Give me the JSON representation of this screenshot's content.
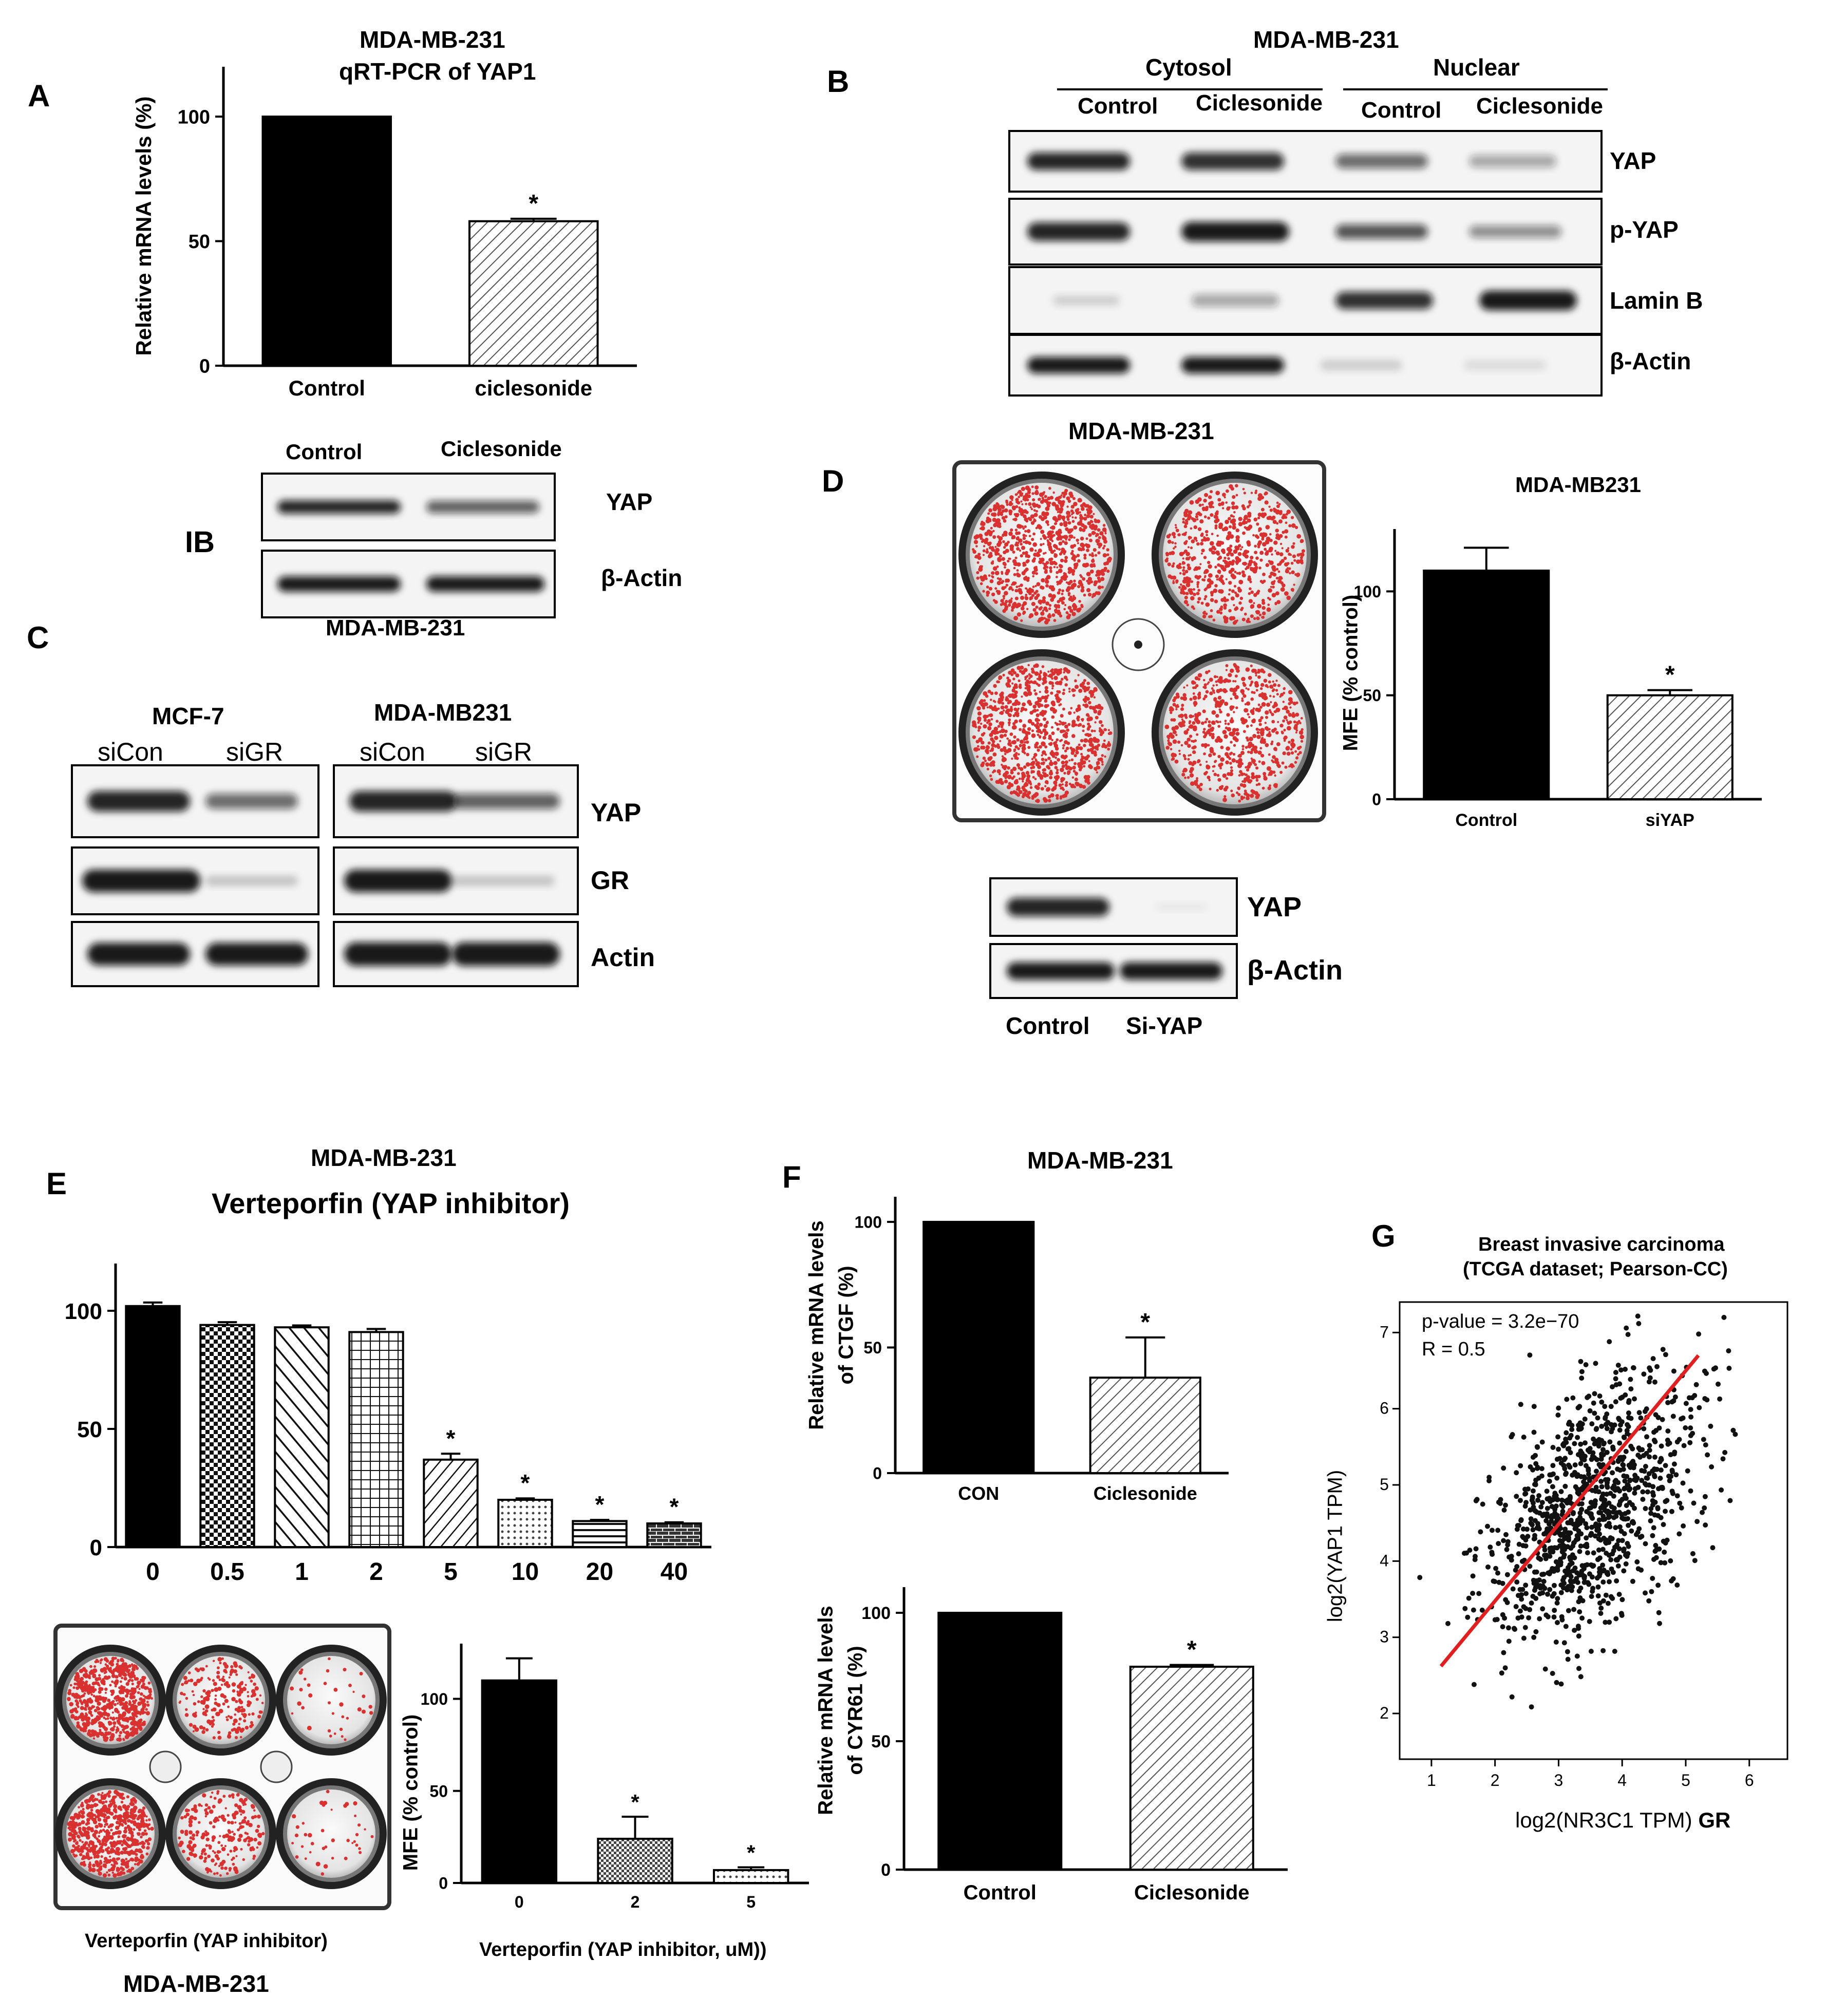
{
  "panelA": {
    "letter": "A",
    "title1": "MDA-MB-231",
    "title2": "qRT-PCR of YAP1",
    "ylabel": "Relative mRNA levels (%)",
    "cell_line": "MDA-MB-231",
    "ib": "IB",
    "blot_conditions": [
      "Control",
      "Ciclesonide"
    ],
    "blot_rows": [
      "YAP",
      "β-Actin"
    ]
  },
  "panelB": {
    "letter": "B",
    "title": "MDA-MB-231",
    "fractions": [
      "Cytosol",
      "Nuclear"
    ],
    "conditions": [
      "Control",
      "Ciclesonide",
      "Control",
      "Ciclesonide"
    ],
    "rows": [
      "YAP",
      "p-YAP",
      "Lamin B",
      "β-Actin"
    ]
  },
  "panelC": {
    "letter": "C",
    "cell_lines": [
      "MCF-7",
      "MDA-MB231"
    ],
    "conditions": [
      "siCon",
      "siGR",
      "siCon",
      "siGR"
    ],
    "rows": [
      "YAP",
      "GR",
      "Actin"
    ]
  },
  "panelD": {
    "letter": "D",
    "plate_title": "MDA-MB-231",
    "chart_title": "MDA-MB231",
    "ylabel": "MFE (% control)",
    "blot_rows": [
      "YAP",
      "β-Actin"
    ],
    "blot_conditions": [
      "Control",
      "Si-YAP"
    ]
  },
  "panelE": {
    "letter": "E",
    "title1": "MDA-MB-231",
    "title2": "Verteporfin (YAP inhibitor)",
    "plate_caption": "Verteporfin (YAP inhibitor)",
    "plate_cell_line": "MDA-MB-231",
    "ylabel2": "MFE (% control)",
    "xlabel2": "Verteporfin (YAP inhibitor, uM))"
  },
  "panelF": {
    "letter": "F",
    "title": "MDA-MB-231",
    "ylabel1a": "Relative mRNA levels",
    "ylabel1b": "of CTGF  (%)",
    "ylabel2a": "Relative mRNA levels",
    "ylabel2b": "of CYR61 (%)"
  },
  "panelG": {
    "letter": "G",
    "title1": "Breast invasive carcinoma",
    "title2": "(TCGA dataset; Pearson-CC)",
    "pvalue": "p-value = 3.2e−70",
    "r": "R = 0.5",
    "xlabel": "log2(NR3C1 TPM)",
    "xlabel_suffix": "GR",
    "ylabel": "log2(YAP1 TPM)"
  },
  "colors": {
    "bar": "#000000",
    "hatch": "#555555",
    "dots": "#111111",
    "regression": "#e02020",
    "colony": "#d93030"
  },
  "chart_data": [
    {
      "id": "A",
      "type": "bar",
      "categories": [
        "Control",
        "ciclesonide"
      ],
      "values": [
        100,
        58
      ],
      "errors": [
        0,
        1
      ],
      "significant": [
        false,
        true
      ],
      "ylim": [
        0,
        120
      ],
      "yticks": [
        0,
        50,
        100
      ],
      "ylabel": "Relative mRNA levels (%)"
    },
    {
      "id": "D",
      "type": "bar",
      "title": "MDA-MB231",
      "categories": [
        "Control",
        "siYAP"
      ],
      "values": [
        110,
        50
      ],
      "errors": [
        11,
        2.5
      ],
      "significant": [
        false,
        true
      ],
      "ylim": [
        0,
        130
      ],
      "yticks": [
        0,
        50,
        100
      ],
      "ylabel": "MFE (% control)"
    },
    {
      "id": "E1",
      "type": "bar",
      "title": "Verteporfin (YAP inhibitor)",
      "categories": [
        "0",
        "0.5",
        "1",
        "2",
        "5",
        "10",
        "20",
        "40"
      ],
      "values": [
        102,
        94,
        93,
        91,
        37,
        20,
        11,
        10
      ],
      "errors": [
        1.5,
        1.2,
        0.8,
        1.3,
        2.5,
        0.6,
        0.5,
        0.5
      ],
      "significant": [
        false,
        false,
        false,
        false,
        true,
        true,
        true,
        true
      ],
      "ylim": [
        0,
        120
      ],
      "yticks": [
        0,
        50,
        100
      ]
    },
    {
      "id": "E2",
      "type": "bar",
      "categories": [
        "0",
        "2",
        "5"
      ],
      "values": [
        110,
        24,
        7
      ],
      "errors": [
        12,
        12,
        1.5
      ],
      "significant": [
        false,
        true,
        true
      ],
      "ylim": [
        0,
        130
      ],
      "yticks": [
        0,
        50,
        100
      ],
      "ylabel": "MFE (% control)",
      "xlabel": "Verteporfin (YAP inhibitor, uM))"
    },
    {
      "id": "F1",
      "type": "bar",
      "categories": [
        "CON",
        "Ciclesonide"
      ],
      "values": [
        100,
        38
      ],
      "errors": [
        0,
        16
      ],
      "significant": [
        false,
        true
      ],
      "ylim": [
        0,
        110
      ],
      "yticks": [
        0,
        50,
        100
      ],
      "ylabel": "Relative mRNA levels of CTGF  (%)"
    },
    {
      "id": "F2",
      "type": "bar",
      "categories": [
        "Control",
        "Ciclesonide"
      ],
      "values": [
        100,
        79
      ],
      "errors": [
        0,
        0.7
      ],
      "significant": [
        false,
        true
      ],
      "ylim": [
        0,
        110
      ],
      "yticks": [
        0,
        50,
        100
      ],
      "ylabel": "Relative mRNA levels of CYR61 (%)"
    },
    {
      "id": "G",
      "type": "scatter",
      "title": "Breast invasive carcinoma (TCGA dataset; Pearson-CC)",
      "xlabel": "log2(NR3C1 TPM) GR",
      "ylabel": "log2(YAP1 TPM)",
      "xlim": [
        0.5,
        6.6
      ],
      "ylim": [
        1.4,
        7.4
      ],
      "xticks": [
        1,
        2,
        3,
        4,
        5,
        6
      ],
      "yticks": [
        2,
        3,
        4,
        5,
        6,
        7
      ],
      "regression": {
        "x": [
          1.15,
          5.2
        ],
        "y": [
          2.62,
          6.7
        ]
      },
      "annotations": [
        "p-value = 3.2e−70",
        "R = 0.5"
      ],
      "points": {
        "n": 1100,
        "x_mean": 3.5,
        "x_sd": 0.85,
        "y_mean": 4.65,
        "y_sd": 0.9,
        "r": 0.5
      }
    }
  ]
}
